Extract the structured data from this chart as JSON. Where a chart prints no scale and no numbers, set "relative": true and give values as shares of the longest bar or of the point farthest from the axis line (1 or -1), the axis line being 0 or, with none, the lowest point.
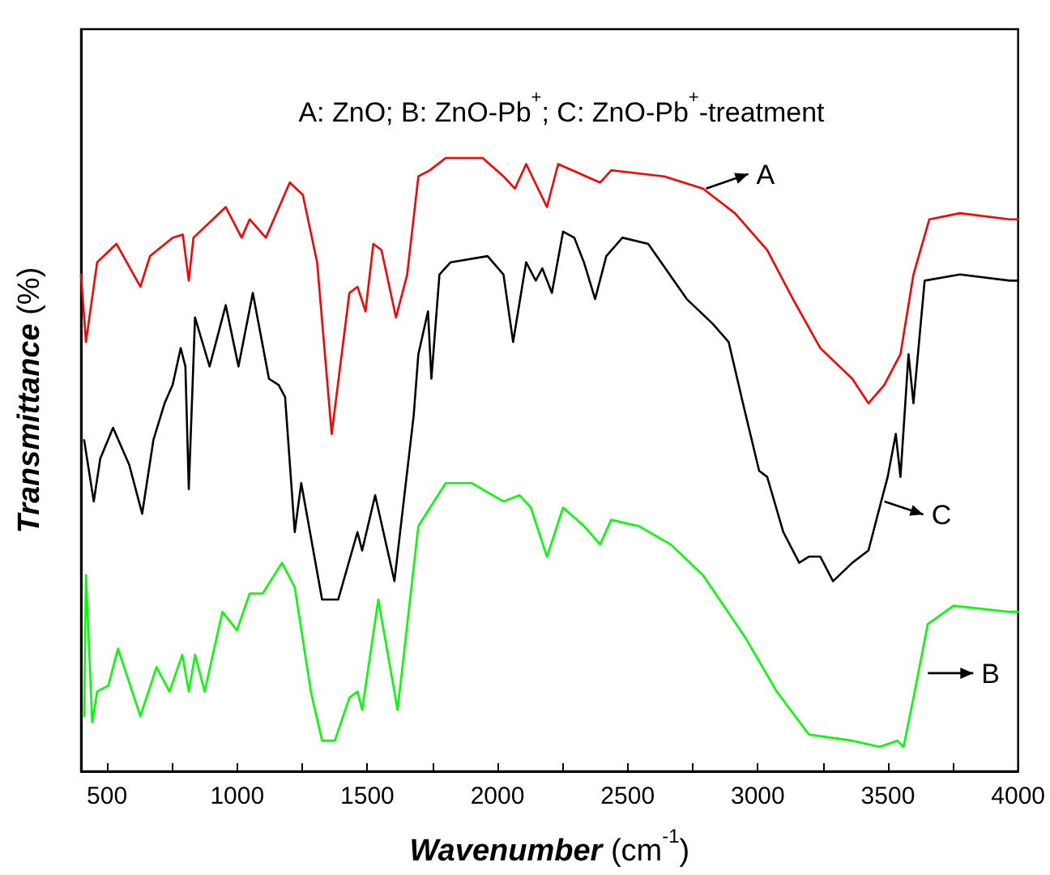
{
  "chart_data": {
    "type": "line",
    "title": "A: ZnO; B: ZnO-Pb$^{+}$; C: ZnO-Pb$^{+}$-treatment",
    "xlabel": "Wavenumber (cm$^{-1}$)",
    "ylabel": "Transmittance (%)",
    "relative": true,
    "xlim": [
      400,
      4000
    ],
    "xticks": [
      500,
      {
        "value": 750,
        "label": null
      },
      1000,
      {
        "value": 1250,
        "label": null
      },
      1500,
      {
        "value": 1750,
        "label": null
      },
      2000,
      {
        "value": 2250,
        "label": null
      },
      2500,
      {
        "value": 2750,
        "label": null
      },
      3000,
      {
        "value": 3250,
        "label": null
      },
      3500,
      {
        "value": 3750,
        "label": null
      },
      4000
    ],
    "grid": false,
    "marker": "none",
    "line_style": "solid",
    "annotations": [
      {
        "text": "A",
        "x": 2789,
        "y": 0.95
      },
      {
        "text": "C",
        "x": 3474,
        "y": 0.44
      },
      {
        "text": "B",
        "x": 3641,
        "y": 0.16
      }
    ],
    "series": [
      {
        "color": "#ff0000",
        "x": [
          400,
          419,
          462,
          536,
          628,
          665,
          752,
          791,
          814,
          832,
          956,
          1017,
          1048,
          1110,
          1202,
          1252,
          1307,
          1363,
          1431,
          1462,
          1493,
          1523,
          1554,
          1610,
          1653,
          1696,
          1740,
          1801,
          1943,
          2023,
          2067,
          2110,
          2190,
          2233,
          2394,
          2437,
          2641,
          2789,
          2912,
          3036,
          3135,
          3240,
          3363,
          3425,
          3486,
          3548,
          3598,
          3659,
          3777,
          3968,
          4000
        ],
        "values": [
          0.81,
          0.7,
          0.83,
          0.86,
          0.79,
          0.84,
          0.87,
          0.875,
          0.8,
          0.87,
          0.92,
          0.87,
          0.9,
          0.87,
          0.96,
          0.94,
          0.83,
          0.55,
          0.78,
          0.79,
          0.75,
          0.86,
          0.85,
          0.74,
          0.81,
          0.97,
          0.98,
          1.0,
          1.0,
          0.97,
          0.95,
          0.99,
          0.92,
          0.99,
          0.96,
          0.98,
          0.97,
          0.95,
          0.91,
          0.85,
          0.77,
          0.69,
          0.64,
          0.6,
          0.63,
          0.68,
          0.81,
          0.9,
          0.91,
          0.9,
          0.9
        ]
      },
      {
        "color": "#000000",
        "x": [
          412,
          449,
          474,
          523,
          585,
          635,
          678,
          721,
          752,
          783,
          801,
          814,
          838,
          894,
          956,
          1005,
          1060,
          1122,
          1159,
          1184,
          1221,
          1246,
          1326,
          1388,
          1462,
          1480,
          1530,
          1604,
          1678,
          1696,
          1733,
          1746,
          1777,
          1820,
          1962,
          2023,
          2060,
          2110,
          2147,
          2172,
          2209,
          2252,
          2295,
          2332,
          2375,
          2418,
          2480,
          2579,
          2727,
          2826,
          2888,
          2943,
          3005,
          3036,
          3098,
          3159,
          3196,
          3240,
          3289,
          3363,
          3425,
          3474,
          3499,
          3530,
          3548,
          3579,
          3598,
          3641,
          3777,
          3968,
          4000
        ],
        "values": [
          0.54,
          0.44,
          0.51,
          0.56,
          0.5,
          0.42,
          0.54,
          0.6,
          0.63,
          0.69,
          0.66,
          0.46,
          0.74,
          0.66,
          0.76,
          0.66,
          0.78,
          0.64,
          0.63,
          0.61,
          0.39,
          0.47,
          0.28,
          0.28,
          0.39,
          0.36,
          0.45,
          0.31,
          0.58,
          0.68,
          0.75,
          0.64,
          0.81,
          0.83,
          0.84,
          0.81,
          0.7,
          0.83,
          0.8,
          0.82,
          0.78,
          0.88,
          0.87,
          0.83,
          0.77,
          0.84,
          0.87,
          0.86,
          0.77,
          0.73,
          0.7,
          0.6,
          0.49,
          0.48,
          0.39,
          0.34,
          0.35,
          0.35,
          0.31,
          0.34,
          0.36,
          0.44,
          0.48,
          0.55,
          0.48,
          0.68,
          0.6,
          0.8,
          0.81,
          0.8,
          0.8
        ]
      },
      {
        "color": "#00ff00",
        "x": [
          412,
          419,
          443,
          462,
          505,
          542,
          628,
          690,
          740,
          789,
          814,
          838,
          875,
          943,
          999,
          1048,
          1098,
          1172,
          1221,
          1283,
          1326,
          1375,
          1431,
          1462,
          1480,
          1542,
          1616,
          1696,
          1801,
          1900,
          2023,
          2085,
          2128,
          2190,
          2252,
          2332,
          2394,
          2437,
          2542,
          2665,
          2789,
          2949,
          3073,
          3196,
          3363,
          3468,
          3536,
          3560,
          3598,
          3653,
          3752,
          3968,
          4000
        ],
        "values": [
          0.09,
          0.32,
          0.08,
          0.13,
          0.14,
          0.2,
          0.09,
          0.17,
          0.13,
          0.19,
          0.13,
          0.19,
          0.13,
          0.26,
          0.23,
          0.29,
          0.29,
          0.34,
          0.3,
          0.13,
          0.05,
          0.05,
          0.12,
          0.13,
          0.1,
          0.28,
          0.1,
          0.4,
          0.47,
          0.47,
          0.44,
          0.45,
          0.43,
          0.35,
          0.43,
          0.4,
          0.37,
          0.41,
          0.4,
          0.37,
          0.32,
          0.22,
          0.13,
          0.06,
          0.05,
          0.04,
          0.05,
          0.04,
          0.12,
          0.24,
          0.27,
          0.26,
          0.26
        ]
      }
    ]
  }
}
